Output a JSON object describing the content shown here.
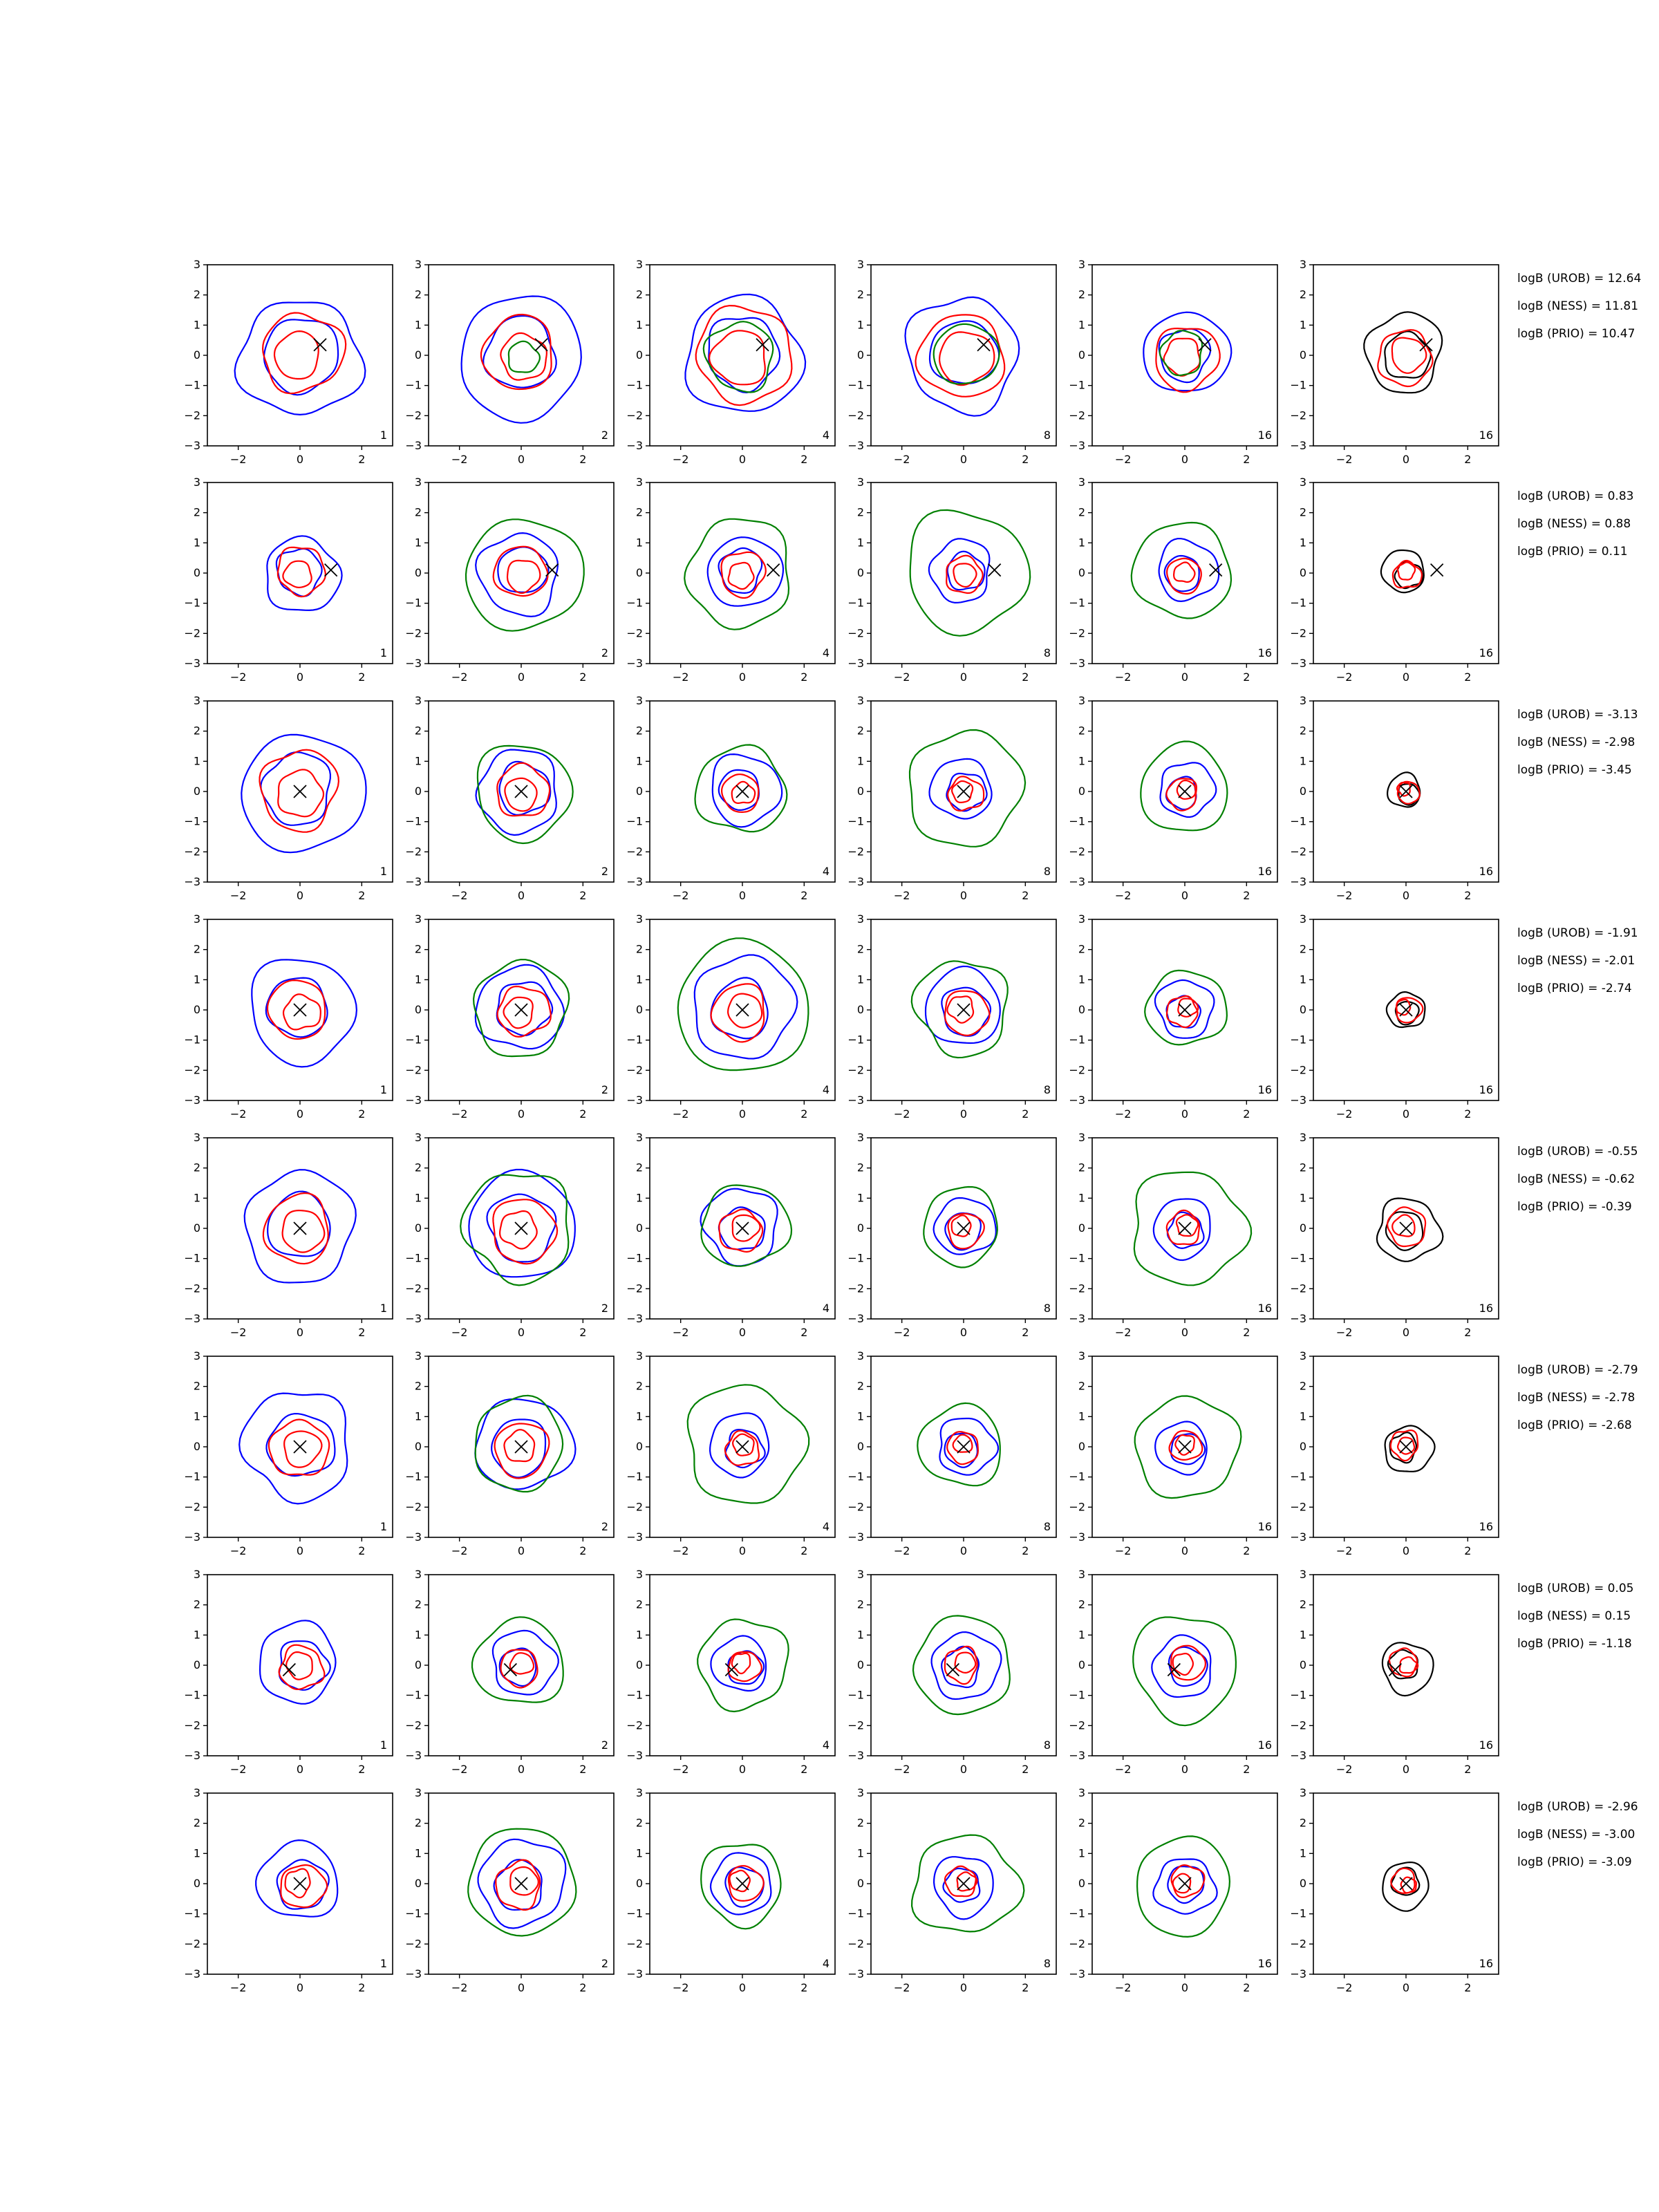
{
  "chart_data": {
    "type": "contour-grid",
    "rows": 8,
    "cols": 6,
    "xlim": [
      -3,
      3
    ],
    "ylim": [
      -3,
      3
    ],
    "xticks": [
      -2,
      0,
      2
    ],
    "yticks": [
      3,
      2,
      1,
      0,
      -1,
      -2,
      -3
    ],
    "xtick_labels": [
      "−2",
      "0",
      "2"
    ],
    "ytick_labels": [
      "3",
      "2",
      "1",
      "0",
      "−1",
      "−2",
      "−3"
    ],
    "column_labels": [
      "1",
      "2",
      "4",
      "8",
      "16",
      "16"
    ],
    "series_colors": {
      "blue": "#0000ff",
      "red": "#ff0000",
      "green": "#008000",
      "black": "#000000"
    },
    "column_series": [
      [
        "blue",
        "red"
      ],
      [
        "blue",
        "red",
        "green"
      ],
      [
        "blue",
        "red",
        "green"
      ],
      [
        "blue",
        "red",
        "green"
      ],
      [
        "blue",
        "red",
        "green"
      ],
      [
        "black",
        "red"
      ]
    ],
    "truth_markers": [
      {
        "x": 0.65,
        "y": 0.35
      },
      {
        "x": 1.0,
        "y": 0.1
      },
      {
        "x": 0.0,
        "y": 0.0
      },
      {
        "x": 0.0,
        "y": 0.0
      },
      {
        "x": 0.0,
        "y": 0.0
      },
      {
        "x": 0.0,
        "y": 0.0
      },
      {
        "x": -0.35,
        "y": -0.15
      },
      {
        "x": 0.0,
        "y": 0.0
      }
    ],
    "contour_radii": [
      [
        [
          1.95,
          1.25
        ],
        [
          1.95,
          1.2,
          0.5
        ],
        [
          1.9,
          1.5,
          1.1
        ],
        [
          1.8,
          1.4,
          1.0
        ],
        [
          1.35,
          1.0,
          0.7
        ],
        [
          1.25,
          0.9,
          0.45
        ]
      ],
      [
        [
          1.2,
          0.75
        ],
        [
          1.3,
          0.85,
          1.8
        ],
        [
          1.15,
          0.7,
          1.75
        ],
        [
          1.0,
          0.6,
          1.9
        ],
        [
          0.95,
          0.55,
          1.6
        ],
        [
          0.7,
          0.45,
          0.3
        ]
      ],
      [
        [
          1.9,
          1.25
        ],
        [
          1.35,
          0.85,
          1.5
        ],
        [
          1.1,
          0.6,
          1.45
        ],
        [
          1.0,
          0.55,
          1.8
        ],
        [
          0.85,
          0.5,
          1.45
        ],
        [
          0.55,
          0.35,
          0.2
        ]
      ],
      [
        [
          1.65,
          0.95
        ],
        [
          1.4,
          0.8,
          1.5
        ],
        [
          1.6,
          0.9,
          2.15
        ],
        [
          1.25,
          0.7,
          1.5
        ],
        [
          0.9,
          0.5,
          1.25
        ],
        [
          0.6,
          0.4,
          0.25
        ]
      ],
      [
        [
          1.75,
          1.1
        ],
        [
          1.75,
          1.0,
          1.75
        ],
        [
          1.2,
          0.7,
          1.35
        ],
        [
          0.95,
          0.55,
          1.25
        ],
        [
          0.95,
          0.55,
          1.8
        ],
        [
          1.0,
          0.6,
          0.35
        ]
      ],
      [
        [
          1.75,
          0.95
        ],
        [
          1.5,
          0.85,
          1.5
        ],
        [
          1.0,
          0.55,
          1.85
        ],
        [
          0.9,
          0.5,
          1.35
        ],
        [
          0.85,
          0.5,
          1.6
        ],
        [
          0.75,
          0.45,
          0.25
        ]
      ],
      [
        [
          1.3,
          0.7
        ],
        [
          1.0,
          0.6,
          1.45
        ],
        [
          0.9,
          0.5,
          1.4
        ],
        [
          1.05,
          0.55,
          1.6
        ],
        [
          1.0,
          0.55,
          1.65
        ],
        [
          0.8,
          0.45,
          0.25
        ]
      ],
      [
        [
          1.3,
          0.7
        ],
        [
          1.35,
          0.75,
          1.75
        ],
        [
          1.0,
          0.55,
          1.3
        ],
        [
          0.95,
          0.5,
          1.65
        ],
        [
          0.95,
          0.5,
          1.55
        ],
        [
          0.75,
          0.4,
          0.25
        ]
      ]
    ],
    "bayes_factors": [
      [
        "logB (UROB) = 12.64",
        "logB (NESS) = 11.81",
        "logB (PRIO) = 10.47"
      ],
      [
        "logB (UROB) = 0.83",
        "logB (NESS) = 0.88",
        "logB (PRIO) = 0.11"
      ],
      [
        "logB (UROB) = -3.13",
        "logB (NESS) = -2.98",
        "logB (PRIO) = -3.45"
      ],
      [
        "logB (UROB) = -1.91",
        "logB (NESS) = -2.01",
        "logB (PRIO) = -2.74"
      ],
      [
        "logB (UROB) = -0.55",
        "logB (NESS) = -0.62",
        "logB (PRIO) = -0.39"
      ],
      [
        "logB (UROB) = -2.79",
        "logB (NESS) = -2.78",
        "logB (PRIO) = -2.68"
      ],
      [
        "logB (UROB) = 0.05",
        "logB (NESS) = 0.15",
        "logB (PRIO) = -1.18"
      ],
      [
        "logB (UROB) = -2.96",
        "logB (NESS) = -3.00",
        "logB (PRIO) = -3.09"
      ]
    ]
  }
}
